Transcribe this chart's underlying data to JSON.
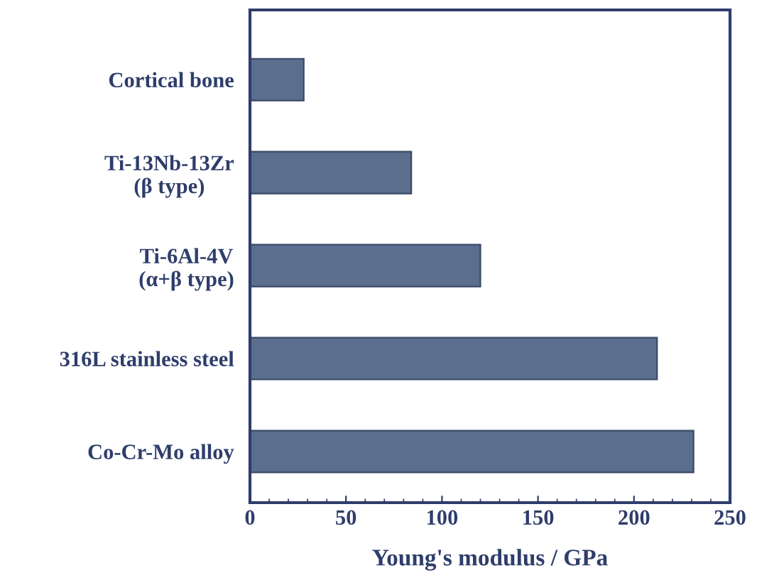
{
  "chart_data": {
    "type": "bar",
    "orientation": "horizontal",
    "categories": [
      "Cortical bone",
      "Ti-13Nb-13Zr\n(β type)",
      "Ti-6Al-4V\n(α+β type)",
      "316L stainless steel",
      "Co-Cr-Mo alloy"
    ],
    "values": [
      28,
      84,
      120,
      212,
      231
    ],
    "color": "#5b6e8e",
    "xlabel": "Young's modulus / GPa",
    "xlim": [
      0,
      250
    ],
    "xticks": [
      0,
      50,
      100,
      150,
      200,
      250
    ],
    "grid": false
  }
}
